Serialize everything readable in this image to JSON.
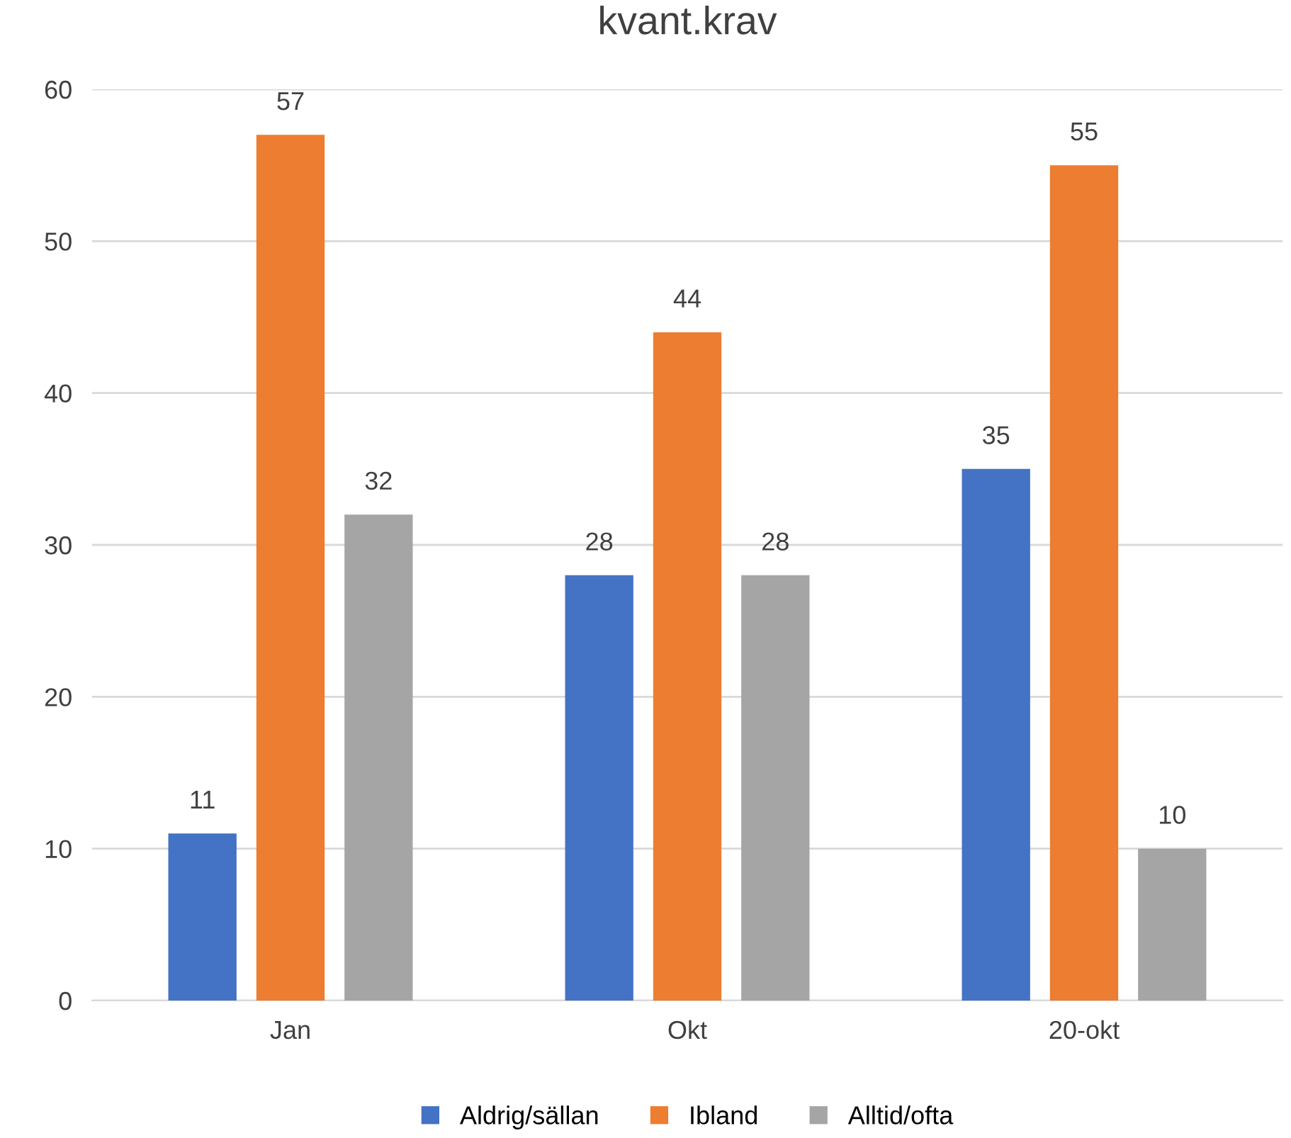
{
  "chart_data": {
    "type": "bar",
    "title": "kvant.krav",
    "categories": [
      "Jan",
      "Okt",
      "20-okt"
    ],
    "series": [
      {
        "name": "Aldrig/sällan",
        "color": "#4472c4",
        "values": [
          11,
          28,
          35
        ]
      },
      {
        "name": "Ibland",
        "color": "#ed7d31",
        "values": [
          57,
          44,
          55
        ]
      },
      {
        "name": "Alltid/ofta",
        "color": "#a5a5a5",
        "values": [
          32,
          28,
          10
        ]
      }
    ],
    "ylim": [
      0,
      60
    ],
    "yticks": [
      0,
      10,
      20,
      30,
      40,
      50,
      60
    ],
    "grid": "y",
    "legend": "bottom",
    "data_labels": true
  }
}
